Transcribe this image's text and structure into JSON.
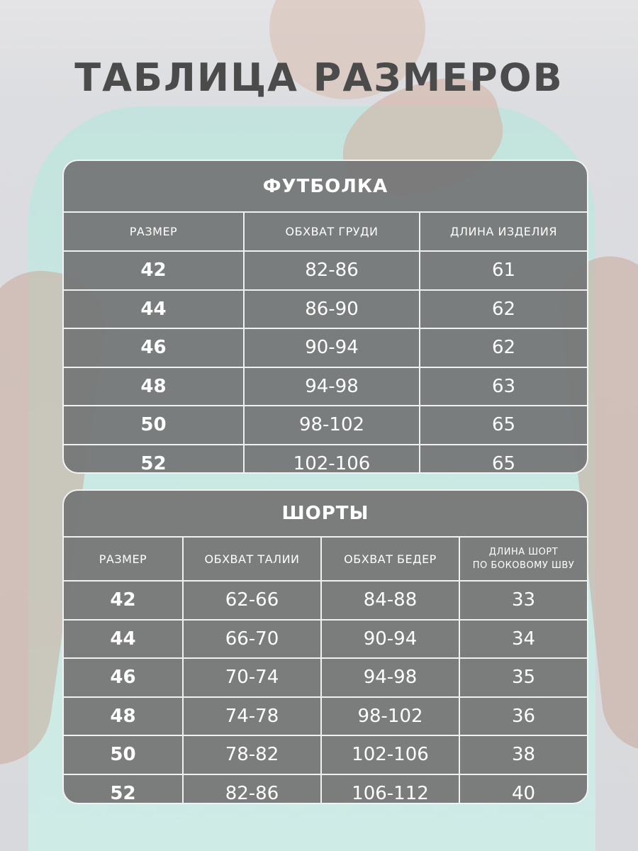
{
  "title": "ТАБЛИЦА РАЗМЕРОВ",
  "tables": [
    {
      "name": "ФУТБОЛКА",
      "headers": [
        "РАЗМЕР",
        "ОБХВАТ ГРУДИ",
        "ДЛИНА ИЗДЕЛИЯ"
      ],
      "rows": [
        [
          "42",
          "82-86",
          "61"
        ],
        [
          "44",
          "86-90",
          "62"
        ],
        [
          "46",
          "90-94",
          "62"
        ],
        [
          "48",
          "94-98",
          "63"
        ],
        [
          "50",
          "98-102",
          "65"
        ],
        [
          "52",
          "102-106",
          "65"
        ]
      ]
    },
    {
      "name": "ШОРТЫ",
      "headers": [
        "РАЗМЕР",
        "ОБХВАТ ТАЛИИ",
        "ОБХВАТ БЕДЕР",
        "ДЛИНА ШОРТ\nПО БОКОВОМУ ШВУ"
      ],
      "rows": [
        [
          "42",
          "62-66",
          "84-88",
          "33"
        ],
        [
          "44",
          "66-70",
          "90-94",
          "34"
        ],
        [
          "46",
          "70-74",
          "94-98",
          "35"
        ],
        [
          "48",
          "74-78",
          "98-102",
          "36"
        ],
        [
          "50",
          "78-82",
          "102-106",
          "38"
        ],
        [
          "52",
          "82-86",
          "106-112",
          "40"
        ]
      ]
    }
  ]
}
